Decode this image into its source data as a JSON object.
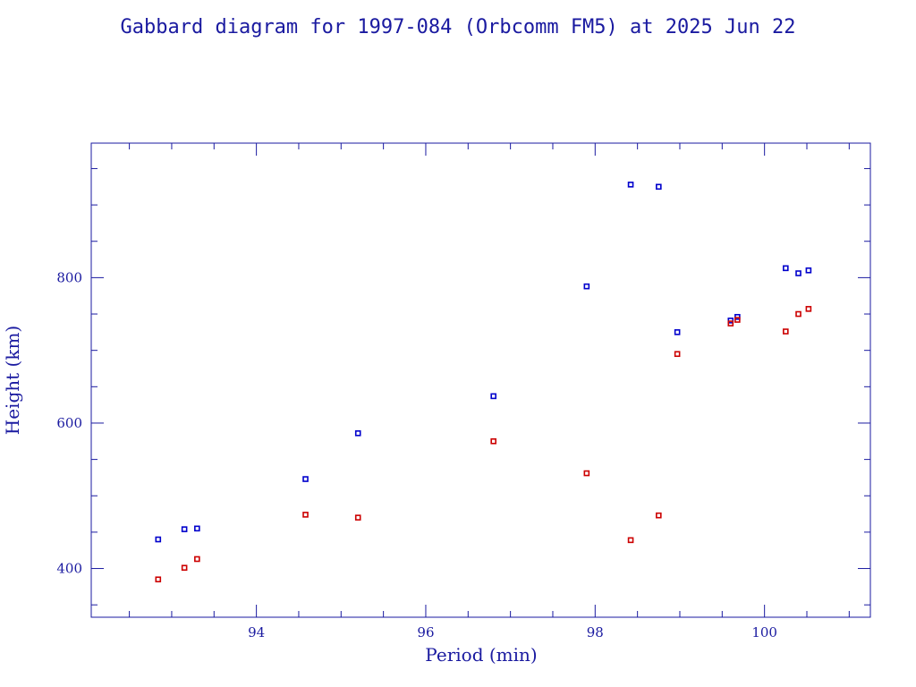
{
  "chart_data": {
    "type": "scatter",
    "title": "Gabbard diagram for 1997-084 (Orbcomm FM5) at 2025 Jun 22",
    "xlabel": "Period (min)",
    "ylabel": "Height (km)",
    "xlim": [
      92.05,
      101.25
    ],
    "ylim": [
      333,
      985
    ],
    "x_major_ticks": [
      94,
      96,
      98,
      100
    ],
    "x_tick_labels": [
      "94",
      "96",
      "98",
      "100"
    ],
    "x_minor_step": 0.5,
    "y_major_ticks": [
      400,
      600,
      800
    ],
    "y_tick_labels": [
      "400",
      "600",
      "800"
    ],
    "y_minor_step": 50,
    "grid": false,
    "colors": {
      "text": "#1a1aa0",
      "frame": "#1a1aa0",
      "apogee": "#0000cc",
      "perigee": "#cc0000"
    },
    "series": [
      {
        "color": "#0000cc",
        "points": [
          [
            92.84,
            440
          ],
          [
            93.15,
            454
          ],
          [
            93.3,
            455
          ],
          [
            94.58,
            523
          ],
          [
            95.2,
            586
          ],
          [
            96.8,
            637
          ],
          [
            97.9,
            788
          ],
          [
            98.42,
            928
          ],
          [
            98.75,
            925
          ],
          [
            98.97,
            725
          ],
          [
            99.6,
            741
          ],
          [
            99.68,
            746
          ],
          [
            100.25,
            813
          ],
          [
            100.4,
            806
          ],
          [
            100.52,
            810
          ]
        ]
      },
      {
        "color": "#cc0000",
        "points": [
          [
            92.84,
            385
          ],
          [
            93.15,
            401
          ],
          [
            93.3,
            413
          ],
          [
            94.58,
            474
          ],
          [
            95.2,
            470
          ],
          [
            96.8,
            575
          ],
          [
            97.9,
            531
          ],
          [
            98.42,
            439
          ],
          [
            98.75,
            473
          ],
          [
            98.97,
            695
          ],
          [
            99.6,
            737
          ],
          [
            99.68,
            742
          ],
          [
            100.25,
            726
          ],
          [
            100.4,
            750
          ],
          [
            100.52,
            757
          ]
        ]
      }
    ]
  }
}
